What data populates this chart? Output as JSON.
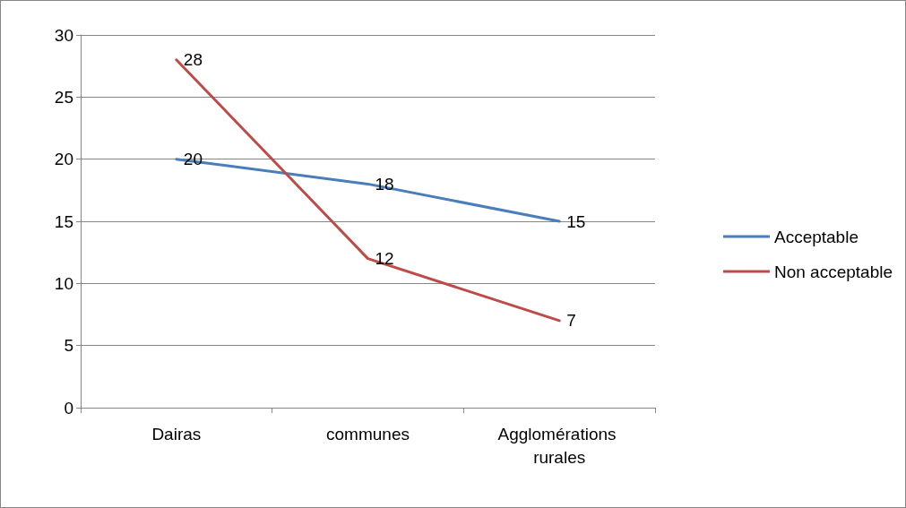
{
  "chart_data": {
    "type": "line",
    "categories": [
      "Dairas",
      "communes",
      "Agglomérations rurales"
    ],
    "series": [
      {
        "name": "Acceptable",
        "color": "#4a7ebb",
        "values": [
          20,
          18,
          15
        ]
      },
      {
        "name": "Non acceptable",
        "color": "#be4b48",
        "values": [
          28,
          12,
          7
        ]
      }
    ],
    "ylim": [
      0,
      30
    ],
    "yticks": [
      0,
      5,
      10,
      15,
      20,
      25,
      30
    ],
    "grid": "y",
    "legend": "right",
    "data_labels": true,
    "marker": "none"
  }
}
